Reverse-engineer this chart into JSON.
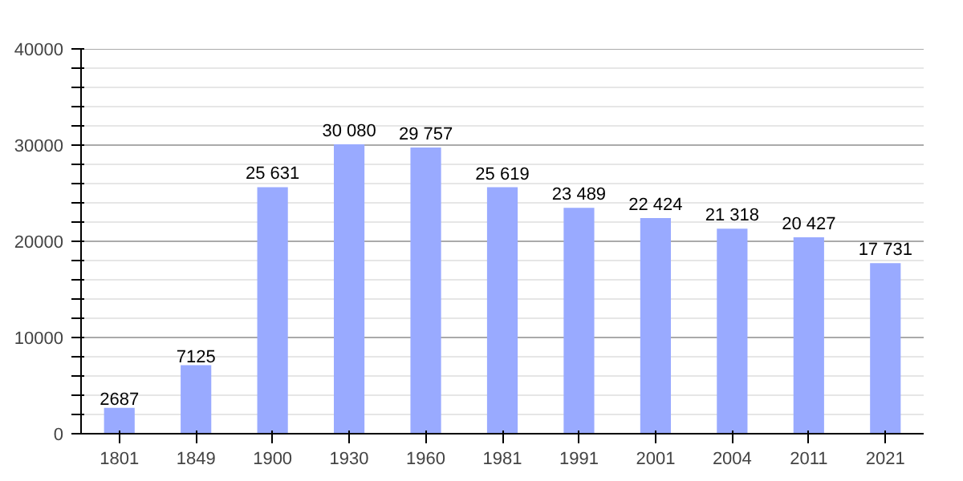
{
  "chart_data": {
    "type": "bar",
    "categories": [
      "1801",
      "1849",
      "1900",
      "1930",
      "1960",
      "1981",
      "1991",
      "2001",
      "2004",
      "2011",
      "2021"
    ],
    "values": [
      2687,
      7125,
      25631,
      30080,
      29757,
      25619,
      23489,
      22424,
      21318,
      20427,
      17731
    ],
    "value_labels": [
      "2687",
      "7125",
      "25 631",
      "30 080",
      "29 757",
      "25 619",
      "23 489",
      "22 424",
      "21 318",
      "20 427",
      "17 731"
    ],
    "color": "#99aaff",
    "ylim": [
      0,
      40000
    ],
    "yticks": [
      0,
      {
        "value": 2000,
        "label": null
      },
      {
        "value": 4000,
        "label": null
      },
      {
        "value": 6000,
        "label": null
      },
      {
        "value": 8000,
        "label": null
      },
      10000,
      {
        "value": 12000,
        "label": null
      },
      {
        "value": 14000,
        "label": null
      },
      {
        "value": 16000,
        "label": null
      },
      {
        "value": 18000,
        "label": null
      },
      20000,
      {
        "value": 22000,
        "label": null
      },
      {
        "value": 24000,
        "label": null
      },
      {
        "value": 26000,
        "label": null
      },
      {
        "value": 28000,
        "label": null
      },
      30000,
      {
        "value": 32000,
        "label": null
      },
      {
        "value": 34000,
        "label": null
      },
      {
        "value": 36000,
        "label": null
      },
      {
        "value": 38000,
        "label": null
      },
      40000
    ],
    "grid": "y"
  }
}
